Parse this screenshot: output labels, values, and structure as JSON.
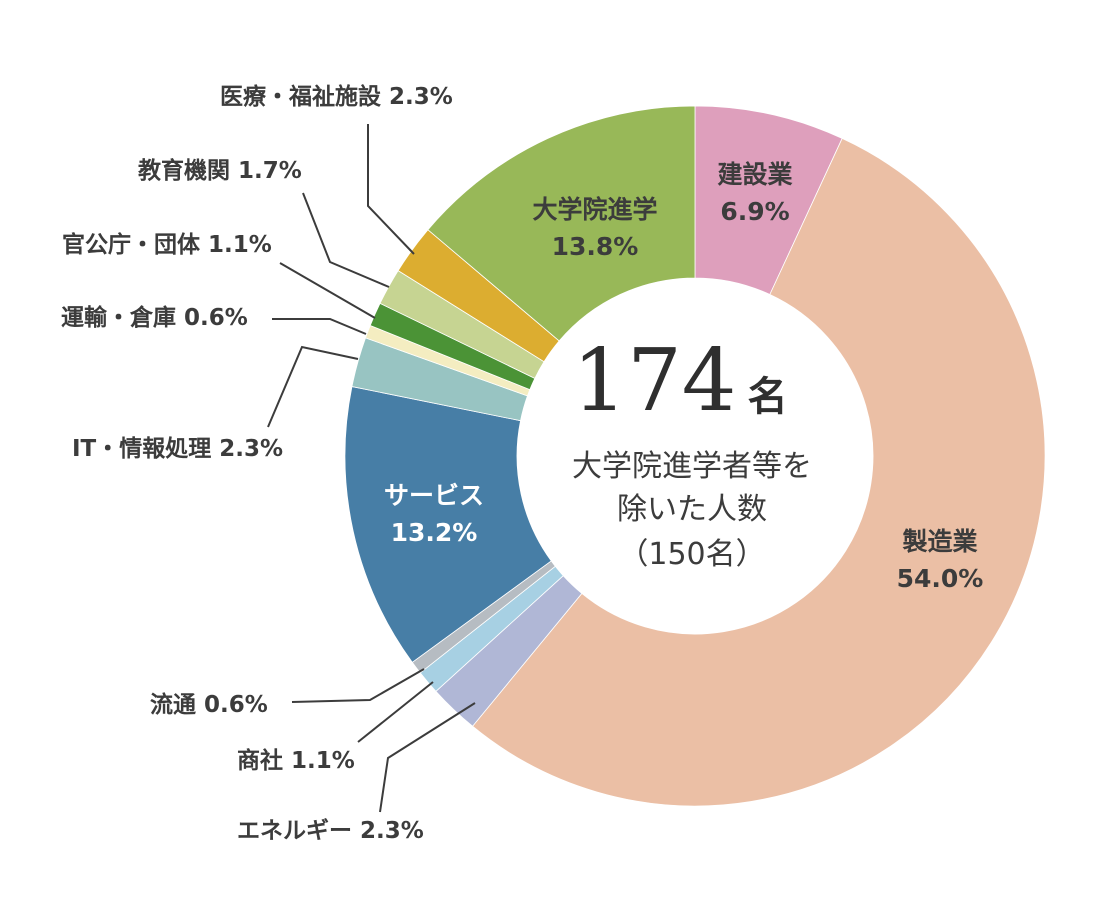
{
  "chart_data": {
    "type": "pie",
    "variant": "donut",
    "center": {
      "number": "174",
      "unit": "名",
      "line1": "大学院進学者等を",
      "line2": "除いた人数",
      "line3": "（150名）"
    },
    "slices": [
      {
        "category": "建設業",
        "value": 6.9,
        "value_label": "6.9%",
        "color": "#de9fbc",
        "label_position": "inside",
        "label_color": "#3c3c3c"
      },
      {
        "category": "製造業",
        "value": 54.0,
        "value_label": "54.0%",
        "color": "#ebbfa5",
        "label_position": "inside",
        "label_color": "#3c3c3c"
      },
      {
        "category": "エネルギー",
        "value": 2.3,
        "value_label": "2.3%",
        "color": "#b0b7d6",
        "label_position": "outside"
      },
      {
        "category": "商社",
        "value": 1.1,
        "value_label": "1.1%",
        "color": "#a7d0e3",
        "label_position": "outside"
      },
      {
        "category": "流通",
        "value": 0.6,
        "value_label": "0.6%",
        "color": "#b6bcc2",
        "label_position": "outside"
      },
      {
        "category": "サービス",
        "value": 13.2,
        "value_label": "13.2%",
        "color": "#477ea6",
        "label_position": "inside",
        "label_color": "#ffffff"
      },
      {
        "category": "IT・情報処理",
        "value": 2.3,
        "value_label": "2.3%",
        "color": "#98c4c2",
        "label_position": "outside"
      },
      {
        "category": "運輸・倉庫",
        "value": 0.6,
        "value_label": "0.6%",
        "color": "#f4edc1",
        "label_position": "outside"
      },
      {
        "category": "官公庁・団体",
        "value": 1.1,
        "value_label": "1.1%",
        "color": "#4b9336",
        "label_position": "outside"
      },
      {
        "category": "教育機関",
        "value": 1.7,
        "value_label": "1.7%",
        "color": "#c6d492",
        "label_position": "outside"
      },
      {
        "category": "医療・福祉施設",
        "value": 2.3,
        "value_label": "2.3%",
        "color": "#dcad30",
        "label_position": "outside"
      },
      {
        "category": "大学院進学",
        "value": 13.8,
        "value_label": "13.8%",
        "color": "#98b858",
        "label_position": "inside",
        "label_color": "#3c3c3c"
      }
    ]
  }
}
